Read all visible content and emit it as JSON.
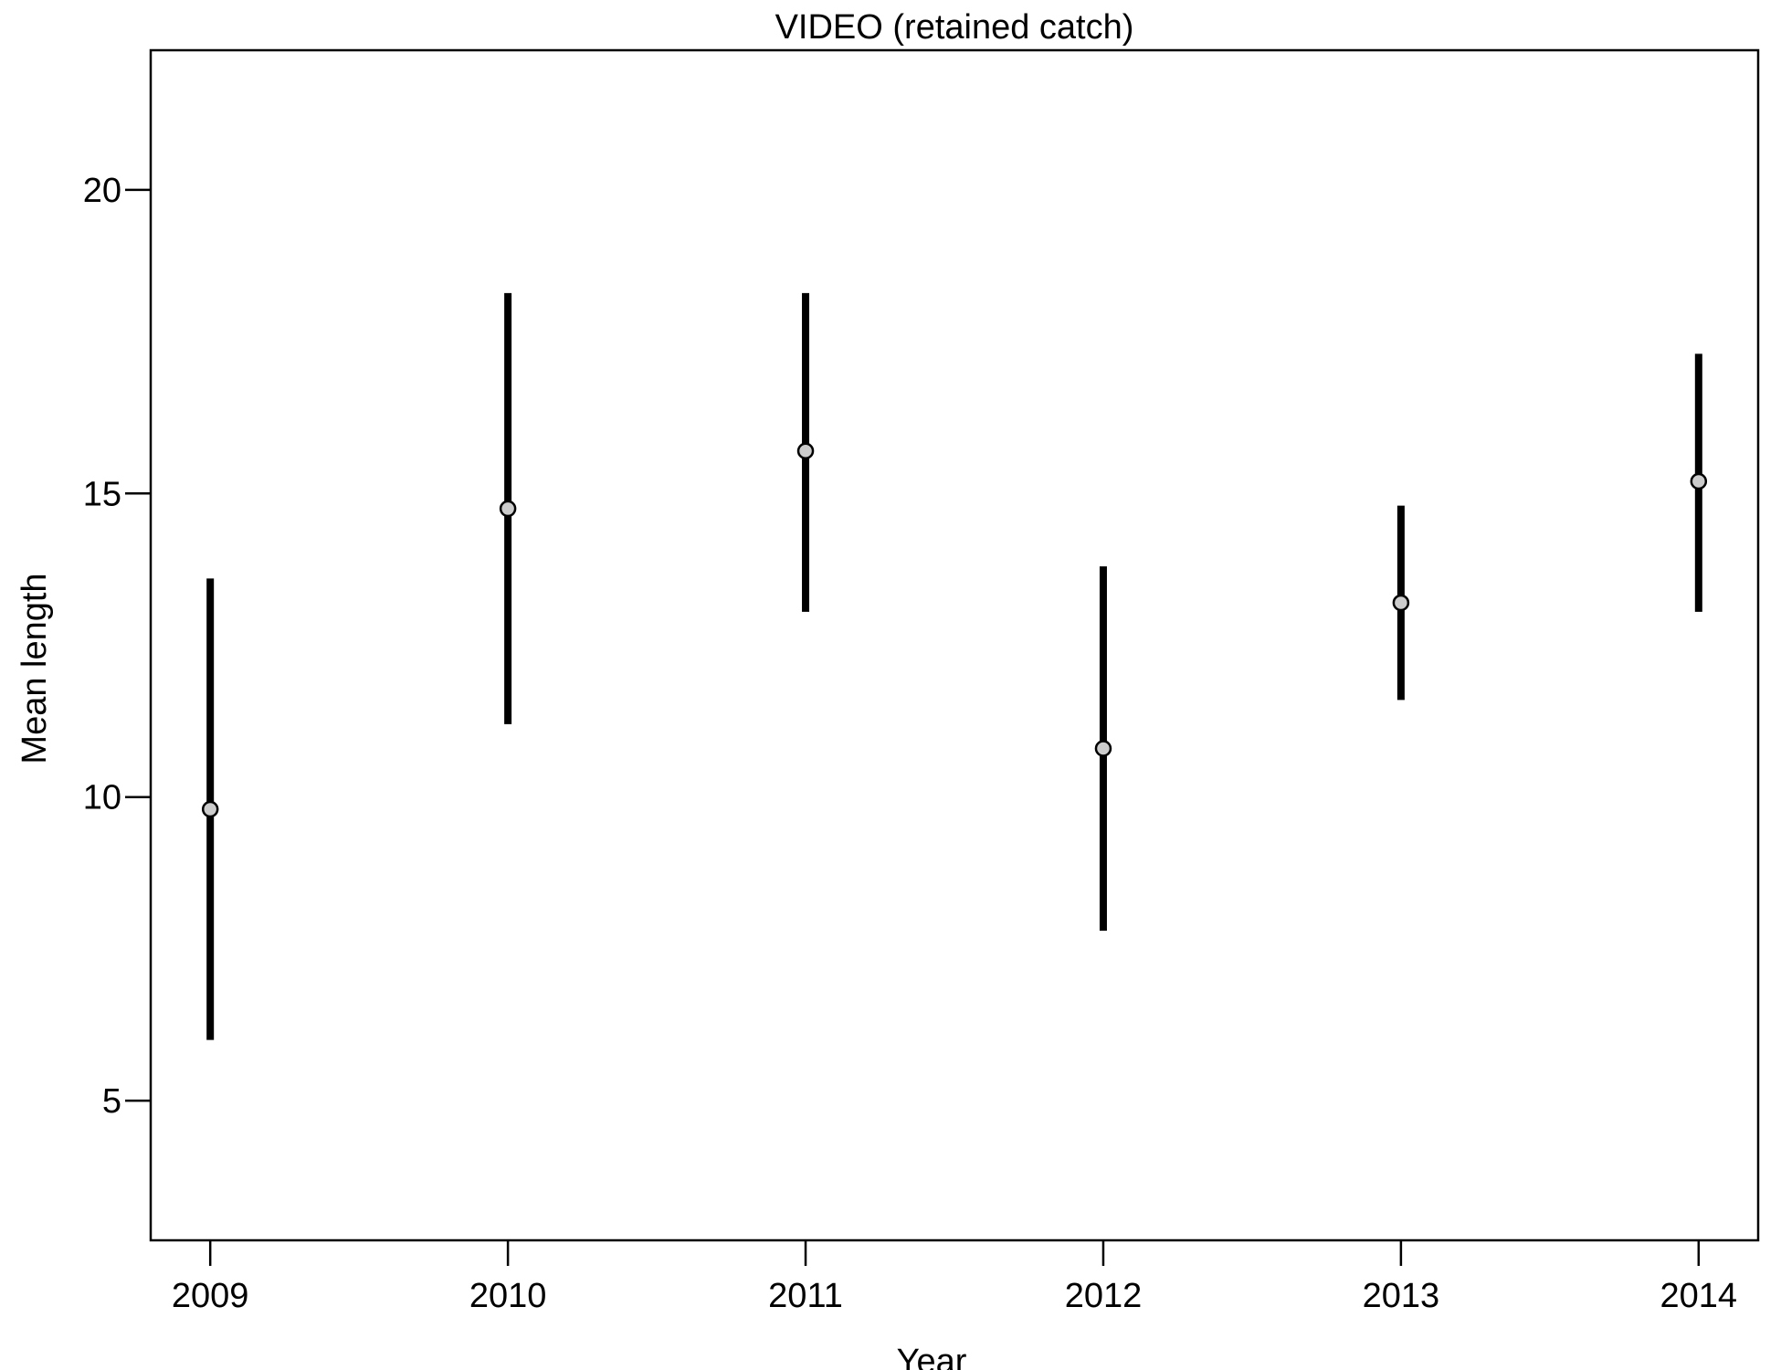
{
  "chart_data": {
    "type": "scatter",
    "title": "VIDEO (retained catch)",
    "xlabel": "Year",
    "ylabel": "Mean length",
    "x": [
      2009,
      2010,
      2011,
      2012,
      2013,
      2014
    ],
    "x_tick_labels": [
      "2009",
      "2010",
      "2011",
      "2012",
      "2013",
      "2014"
    ],
    "xlim": [
      2008.8,
      2014.2
    ],
    "ylim": [
      2.7,
      22.3
    ],
    "y_ticks": [
      5,
      10,
      15,
      20
    ],
    "y_tick_labels": [
      "5",
      "10",
      "15",
      "20"
    ],
    "grid": false,
    "legend": "none",
    "series": [
      {
        "values": [
          9.8,
          14.75,
          15.7,
          10.8,
          13.2,
          15.2
        ],
        "lower": [
          6.0,
          11.2,
          13.05,
          7.8,
          11.6,
          13.05
        ],
        "upper": [
          13.6,
          18.3,
          18.3,
          13.8,
          14.8,
          17.3
        ]
      }
    ],
    "colors": {
      "point_fill": "#cccccc",
      "point_stroke": "#000000",
      "error_bar": "#000000"
    }
  }
}
